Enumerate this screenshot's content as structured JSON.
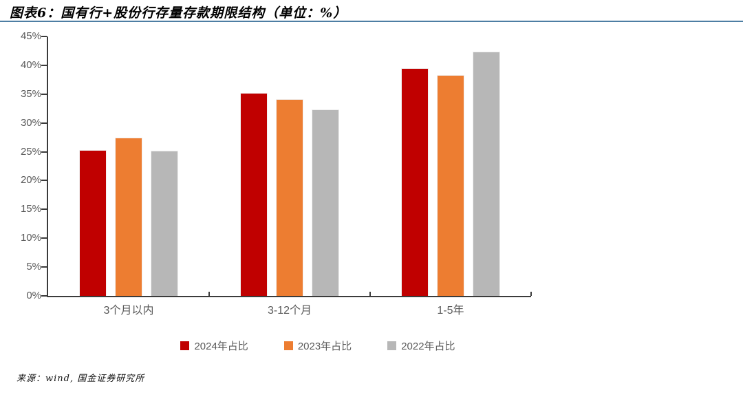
{
  "header": {
    "title": "图表6：国有行+股份行存量存款期限结构（单位：%）"
  },
  "footer": {
    "source": "来源：wind, 国金证券研究所"
  },
  "colors": {
    "series_2024": "#c00000",
    "series_2023": "#ed7d31",
    "series_2022": "#b7b7b7",
    "divider": "#4d7ea3",
    "axis": "#3b3b3b",
    "label": "#595959"
  },
  "chart_data": {
    "type": "bar",
    "title": "图表6：国有行+股份行存量存款期限结构（单位：%）",
    "categories": [
      "3个月以内",
      "3-12个月",
      "1-5年"
    ],
    "series": [
      {
        "name": "2024年占比",
        "color_key": "series_2024",
        "values": [
          25.3,
          35.2,
          39.5
        ]
      },
      {
        "name": "2023年占比",
        "color_key": "series_2023",
        "values": [
          27.4,
          34.1,
          38.3
        ]
      },
      {
        "name": "2022年占比",
        "color_key": "series_2022",
        "values": [
          25.2,
          32.4,
          42.4
        ]
      }
    ],
    "xlabel": "",
    "ylabel": "",
    "ylim": [
      0,
      45
    ],
    "ytick_step": 5,
    "ytick_suffix": "%",
    "grid": false,
    "legend_position": "bottom"
  }
}
